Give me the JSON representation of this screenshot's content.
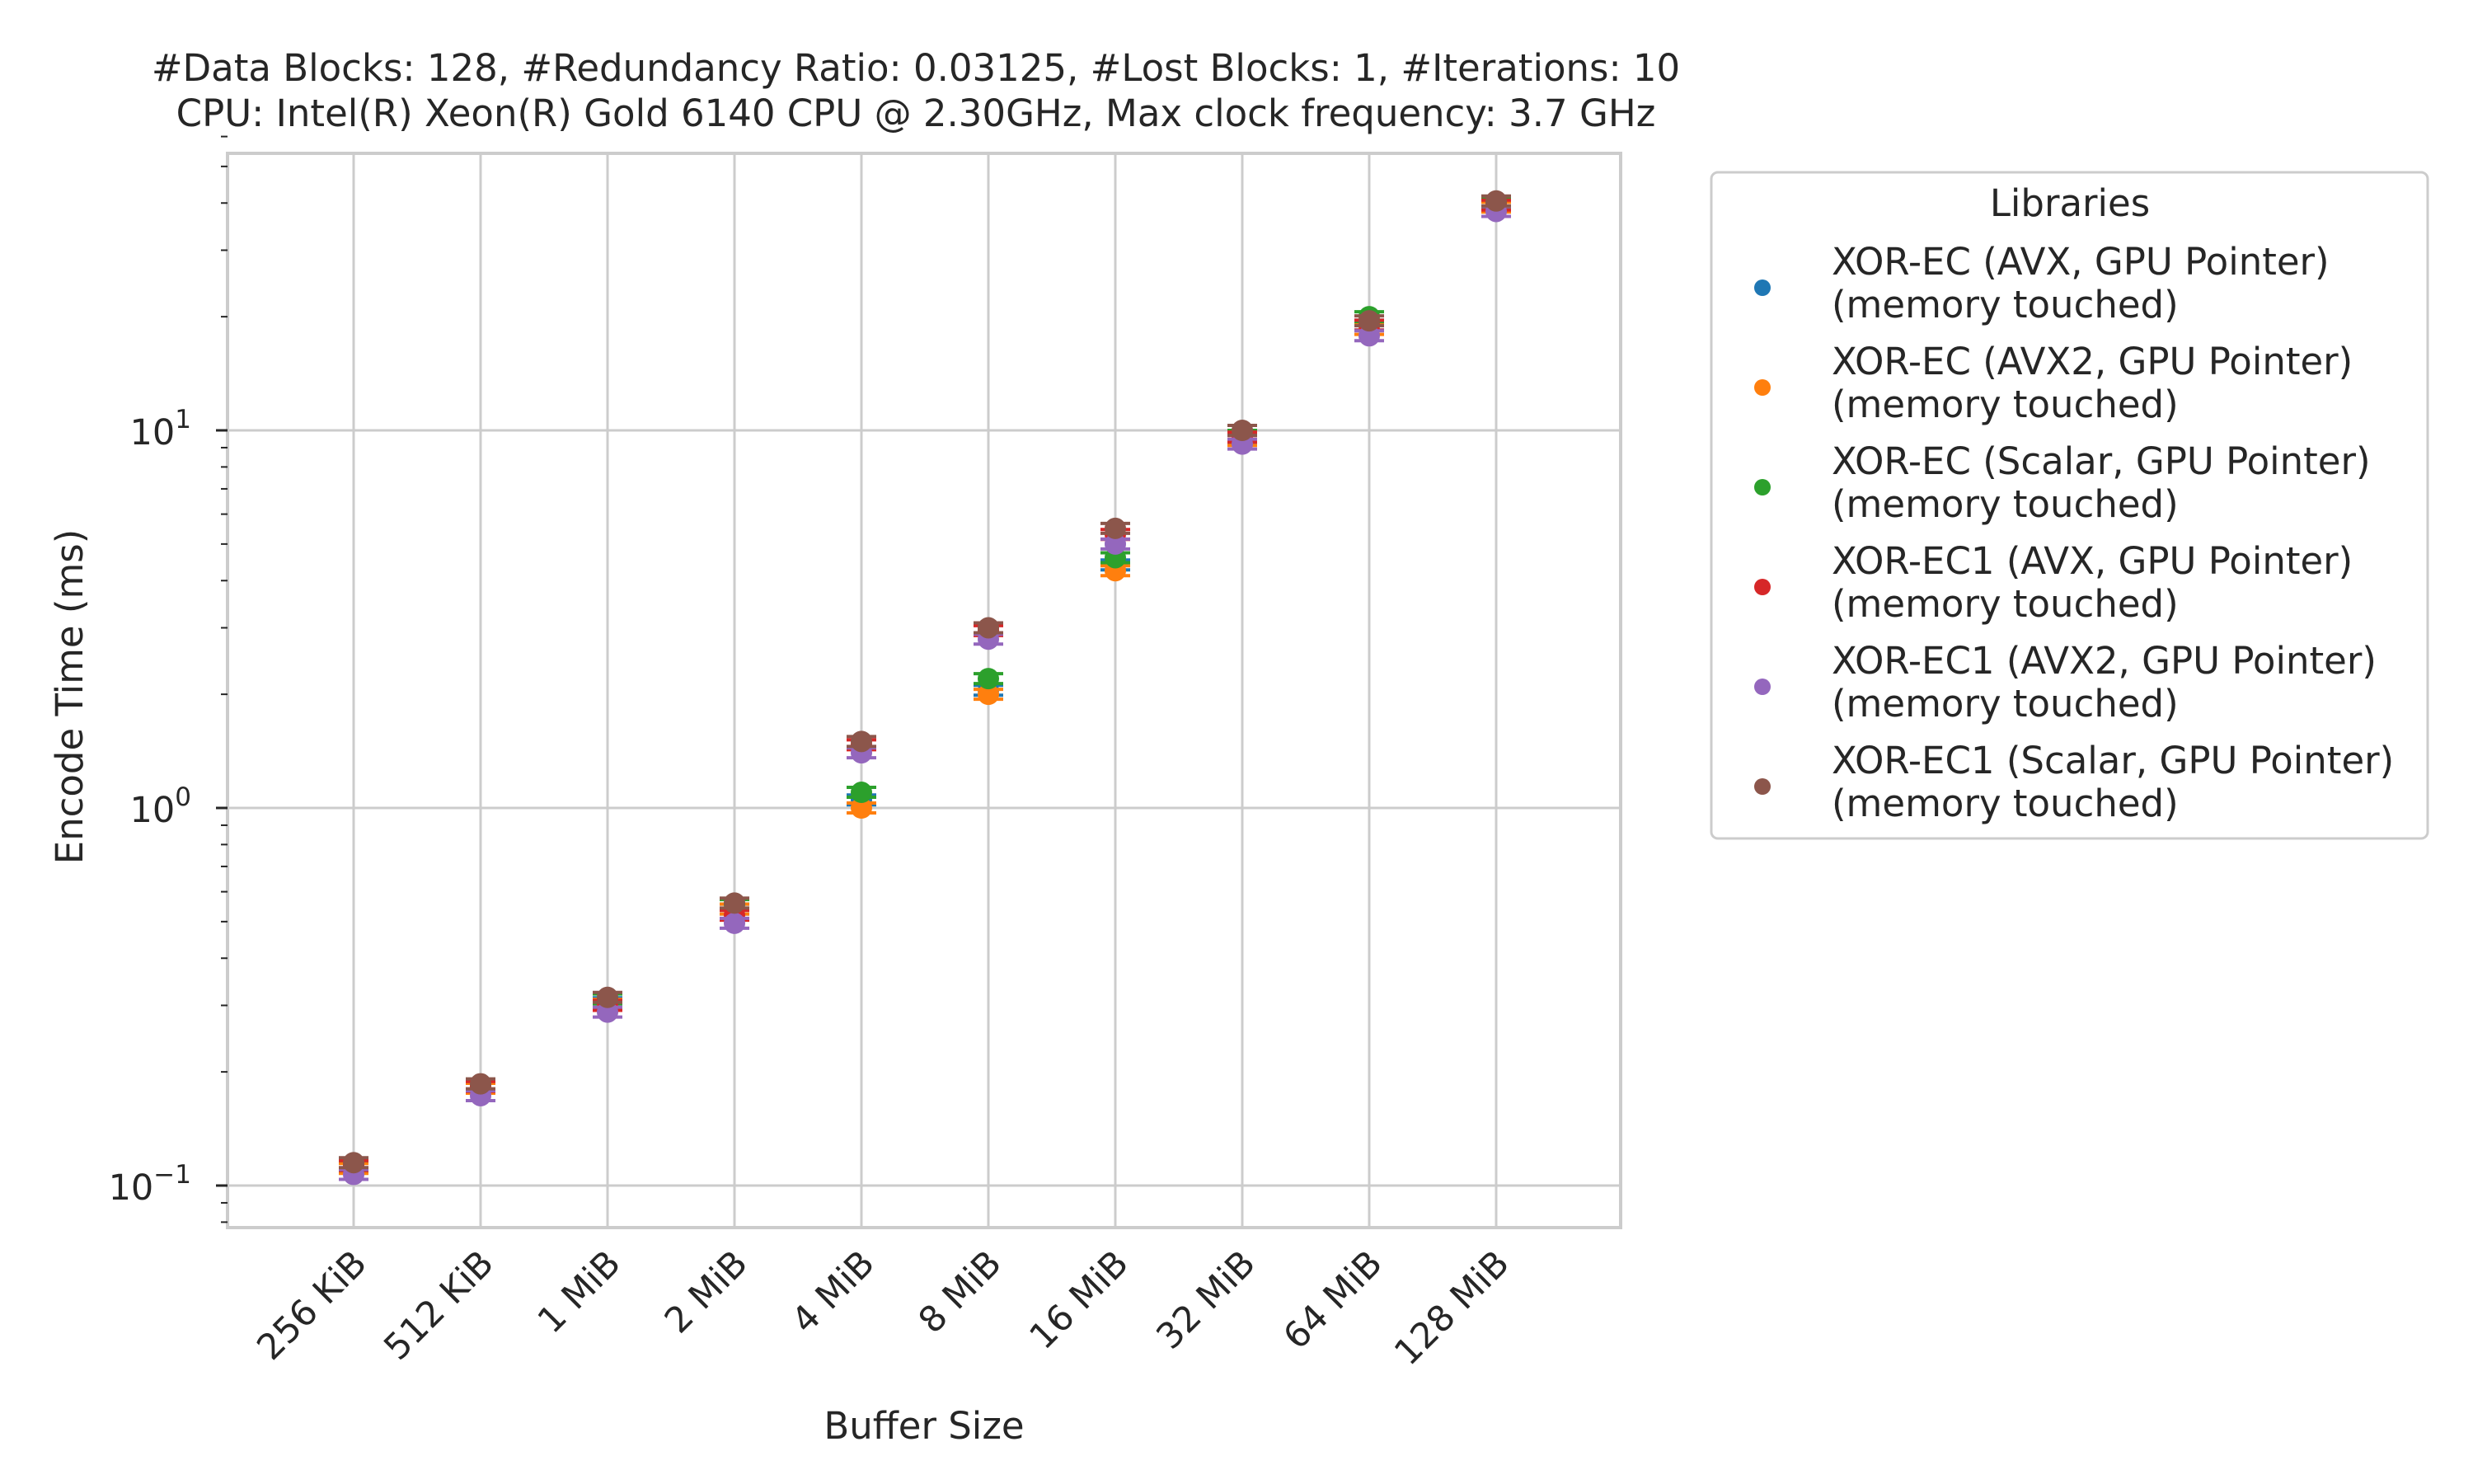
{
  "chart_data": {
    "type": "scatter",
    "title_line1": "#Data Blocks: 128, #Redundancy Ratio: 0.03125, #Lost Blocks: 1, #Iterations: 10",
    "title_line2": "CPU: Intel(R) Xeon(R) Gold 6140 CPU @ 2.30GHz, Max clock frequency: 3.7 GHz",
    "xlabel": "Buffer Size",
    "ylabel": "Encode Time (ms)",
    "yscale": "log",
    "ylim": [
      0.08,
      60
    ],
    "grid": true,
    "categories": [
      "256 KiB",
      "512 KiB",
      "1 MiB",
      "2 MiB",
      "4 MiB",
      "8 MiB",
      "16 MiB",
      "32 MiB",
      "64 MiB",
      "128 MiB"
    ],
    "y_ticks": [
      {
        "value": 0.1,
        "base": "10",
        "exp": "−1"
      },
      {
        "value": 1,
        "base": "10",
        "exp": "0"
      },
      {
        "value": 10,
        "base": "10",
        "exp": "1"
      }
    ],
    "legend": {
      "title": "Libraries",
      "position": "outside-right"
    },
    "series": [
      {
        "name_line1": "XOR-EC (AVX, GPU Pointer)",
        "name_line2": "(memory touched)",
        "color": "#1f77b4",
        "values": [
          0.112,
          0.182,
          0.305,
          0.54,
          1.05,
          2.05,
          4.4,
          9.5,
          19.0,
          39.5
        ]
      },
      {
        "name_line1": "XOR-EC (AVX2, GPU Pointer)",
        "name_line2": "(memory touched)",
        "color": "#ff7f0e",
        "values": [
          0.111,
          0.181,
          0.302,
          0.54,
          1.0,
          2.0,
          4.25,
          9.4,
          18.5,
          39.0
        ]
      },
      {
        "name_line1": "XOR-EC (Scalar, GPU Pointer)",
        "name_line2": "(memory touched)",
        "color": "#2ca02c",
        "values": [
          0.113,
          0.185,
          0.312,
          0.555,
          1.1,
          2.2,
          4.6,
          9.7,
          20.0,
          40.0
        ]
      },
      {
        "name_line1": "XOR-EC1 (AVX, GPU Pointer)",
        "name_line2": "(memory touched)",
        "color": "#d62728",
        "values": [
          0.113,
          0.183,
          0.3,
          0.52,
          1.47,
          2.95,
          5.3,
          9.6,
          19.0,
          39.5
        ]
      },
      {
        "name_line1": "XOR-EC1 (AVX2, GPU Pointer)",
        "name_line2": "(memory touched)",
        "color": "#9467bd",
        "values": [
          0.107,
          0.173,
          0.288,
          0.495,
          1.4,
          2.8,
          5.0,
          9.2,
          17.8,
          38.0
        ]
      },
      {
        "name_line1": "XOR-EC1 (Scalar, GPU Pointer)",
        "name_line2": "(memory touched)",
        "color": "#8c564b",
        "values": [
          0.115,
          0.186,
          0.315,
          0.56,
          1.5,
          3.0,
          5.5,
          10.0,
          19.5,
          40.5
        ]
      }
    ]
  }
}
